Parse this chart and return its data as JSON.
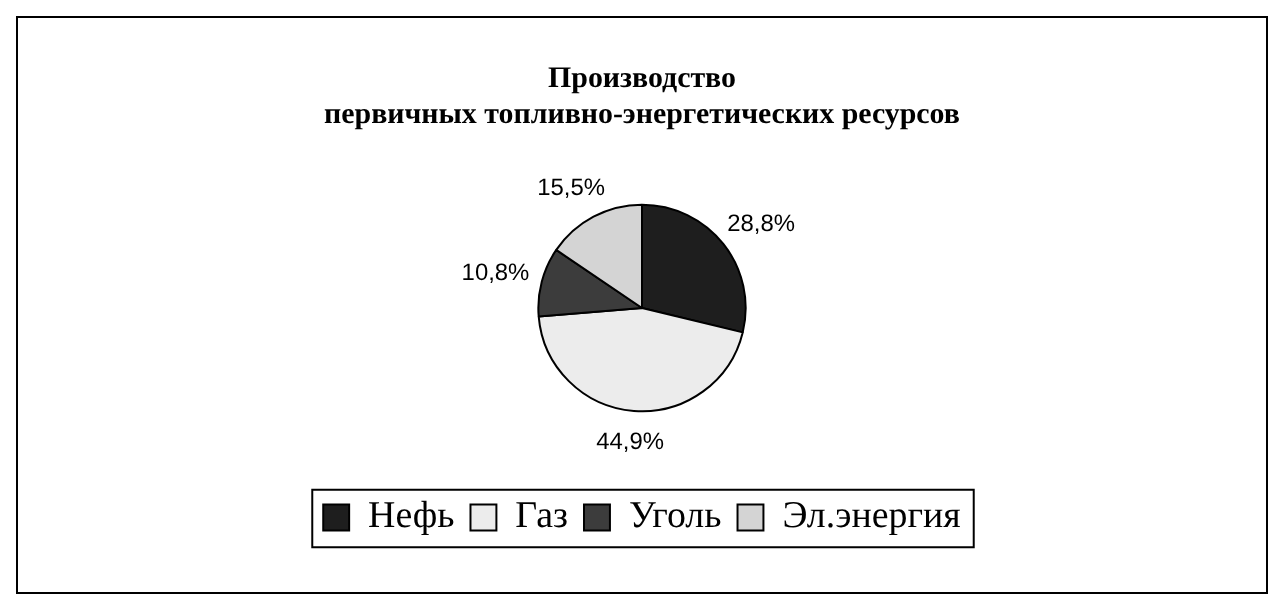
{
  "chart_data": {
    "type": "pie",
    "title": "Производство\nпервичных топливно-энергетических ресурсов",
    "categories": [
      "Нефь",
      "Газ",
      "Уголь",
      "Эл.энергия"
    ],
    "values": [
      28.8,
      44.9,
      10.8,
      15.5
    ],
    "value_labels": [
      "28,8%",
      "44,9%",
      "10,8%",
      "15,5%"
    ],
    "colors": [
      "#1e1e1e",
      "#ececec",
      "#3c3c3c",
      "#d4d4d4"
    ],
    "legend": "bottom"
  }
}
